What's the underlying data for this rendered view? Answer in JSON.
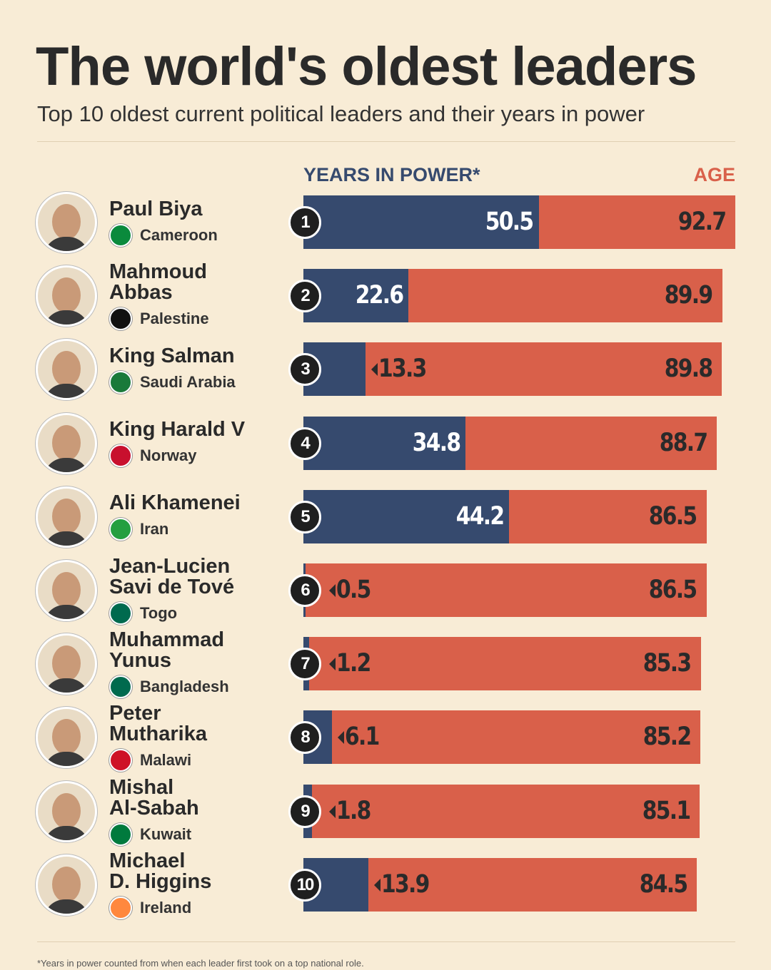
{
  "chart_data": {
    "type": "bar",
    "title": "The world's oldest leaders",
    "subtitle": "Top 10 oldest current political leaders and their years in power",
    "categories": [
      "Paul Biya",
      "Mahmoud\nAbbas",
      "King Salman",
      "King Harald V",
      "Ali Khamenei",
      "Jean-Lucien\nSavi de Tové",
      "Muhammad\nYunus",
      "Peter\nMutharika",
      "Mishal\nAl-Sabah",
      "Michael\nD. Higgins"
    ],
    "countries": [
      "Cameroon",
      "Palestine",
      "Saudi Arabia",
      "Norway",
      "Iran",
      "Togo",
      "Bangladesh",
      "Malawi",
      "Kuwait",
      "Ireland"
    ],
    "ranks": [
      1,
      2,
      3,
      4,
      5,
      6,
      7,
      8,
      9,
      10
    ],
    "series": [
      {
        "name": "YEARS IN POWER*",
        "color": "#364a6e",
        "values": [
          50.5,
          22.6,
          13.3,
          34.8,
          44.2,
          0.5,
          1.2,
          6.1,
          1.8,
          13.9
        ]
      },
      {
        "name": "AGE",
        "color": "#d9604a",
        "values": [
          92.7,
          89.9,
          89.8,
          88.7,
          86.5,
          86.5,
          85.3,
          85.2,
          85.1,
          84.5
        ]
      }
    ],
    "footnote": "*Years in power counted from when each leader first took on a top national role."
  }
}
